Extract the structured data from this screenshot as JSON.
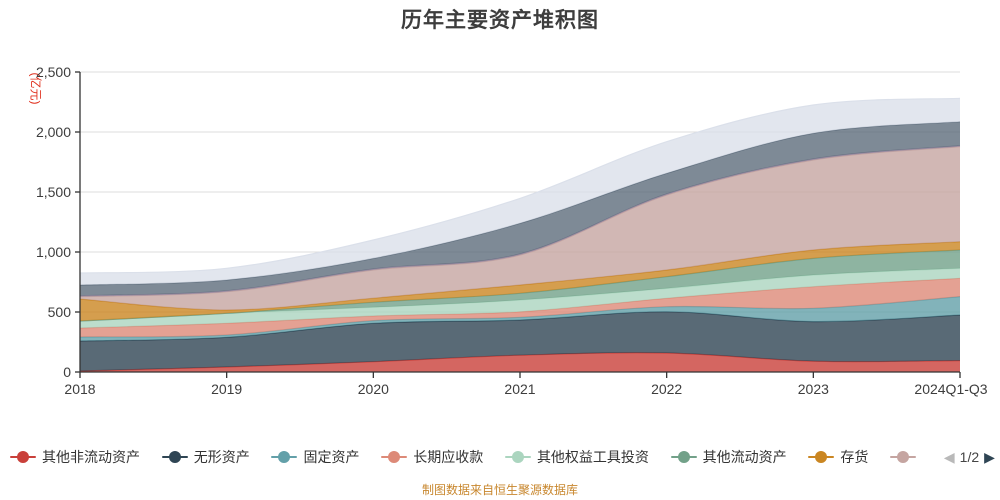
{
  "title": "历年主要资产堆积图",
  "footer": {
    "text": "制图数据来自恒生聚源数据库",
    "color": "#c8872e"
  },
  "legend": {
    "page_label": "1/2",
    "prev_icon": "◀",
    "next_icon": "▶"
  },
  "chart_data": {
    "type": "area",
    "stacked": true,
    "smooth": true,
    "title": "历年主要资产堆积图",
    "ylabel": "(亿元)",
    "ylabel_color": "#e0301e",
    "xlabel": "",
    "ylim": [
      0,
      2500
    ],
    "ytick_interval": 500,
    "ytick_labels": [
      "0",
      "500",
      "1,000",
      "1,500",
      "2,000",
      "2,500"
    ],
    "grid": true,
    "legend_position": "bottom",
    "categories": [
      "2018",
      "2019",
      "2020",
      "2021",
      "2022",
      "2023",
      "2024Q1-Q3"
    ],
    "series": [
      {
        "name": "其他非流动资产",
        "color": "#c9403a",
        "legend_page": 1,
        "values": [
          8,
          42,
          86,
          140,
          158,
          90,
          95
        ]
      },
      {
        "name": "无形资产",
        "color": "#2f4554",
        "legend_page": 1,
        "values": [
          250,
          247,
          320,
          293,
          344,
          330,
          380
        ]
      },
      {
        "name": "固定资产",
        "color": "#63a0a9",
        "legend_page": 1,
        "values": [
          34,
          19,
          22,
          23,
          42,
          111,
          153
        ]
      },
      {
        "name": "长期应收款",
        "color": "#dd8a78",
        "legend_page": 1,
        "values": [
          75,
          98,
          39,
          46,
          70,
          180,
          153
        ]
      },
      {
        "name": "其他权益工具投资",
        "color": "#abd5bf",
        "legend_page": 1,
        "values": [
          58,
          83,
          72,
          98,
          83,
          97,
          83
        ]
      },
      {
        "name": "其他流动资产",
        "color": "#72a189",
        "legend_page": 1,
        "values": [
          0,
          0,
          42,
          56,
          97,
          139,
          153
        ]
      },
      {
        "name": "存货",
        "color": "#ca8622",
        "legend_page": 1,
        "values": [
          183,
          28,
          34,
          69,
          56,
          70,
          69
        ]
      },
      {
        "name": "",
        "color": "#c5a5a1",
        "legend_page": 1,
        "values": [
          20,
          152,
          235,
          250,
          625,
          750,
          792
        ]
      },
      {
        "name": "",
        "color": "#9b8ca3",
        "legend_page": 2,
        "values": [
          8,
          8,
          8,
          8,
          8,
          8,
          8
        ]
      },
      {
        "name": "",
        "color": "#5e6d7c",
        "legend_page": 2,
        "values": [
          89,
          90,
          89,
          256,
          173,
          214,
          200
        ]
      },
      {
        "name": "",
        "color": "#dbe0ea",
        "legend_page": 2,
        "values": [
          100,
          97,
          153,
          208,
          263,
          236,
          195
        ]
      }
    ]
  }
}
